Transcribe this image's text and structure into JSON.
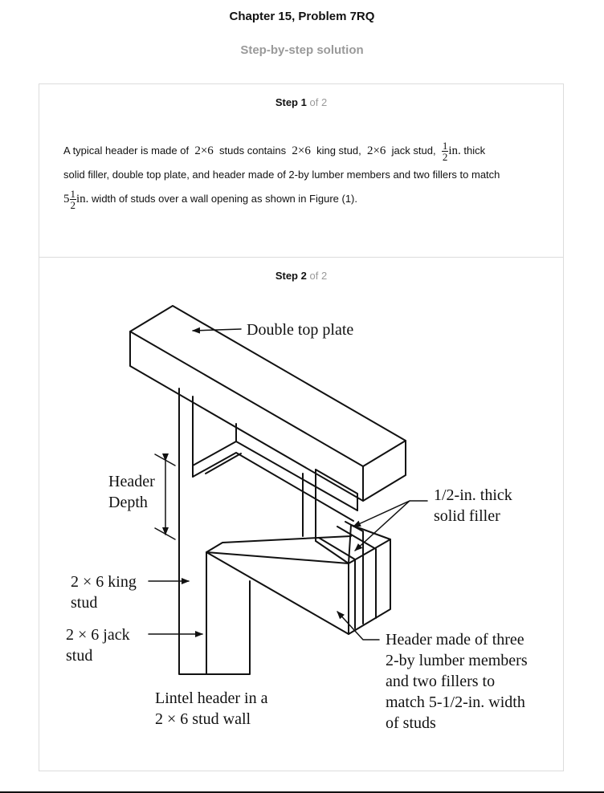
{
  "header": {
    "chapter_title": "Chapter 15, Problem 7RQ",
    "subtitle": "Step-by-step solution"
  },
  "step1": {
    "word": "Step",
    "num": "1",
    "of": "of 2",
    "t1": "A typical header is made of",
    "m1": "2×6",
    "t2": "studs contains",
    "m2": "2×6",
    "t3": "king stud,",
    "m3": "2×6",
    "t4": "jack stud,",
    "f1_num": "1",
    "f1_den": "2",
    "f1_unit": "in.",
    "t5": "thick",
    "line2": "solid filler, double top plate, and header made of 2-by lumber members and two fillers to match",
    "f2_whole": "5",
    "f2_num": "1",
    "f2_den": "2",
    "f2_unit": "in.",
    "t6": "width of studs over a wall opening as shown in Figure (1)."
  },
  "step2": {
    "word": "Step",
    "num": "2",
    "of": "of 2"
  },
  "figure": {
    "double_top_plate": "Double top plate",
    "header_depth_1": "Header",
    "header_depth_2": "Depth",
    "filler_1": "1/2-in. thick",
    "filler_2": "solid filler",
    "king_1": "2 × 6 king",
    "king_2": "stud",
    "jack_1": "2 × 6 jack",
    "jack_2": "stud",
    "header_1": "Header made of three",
    "header_2": "2-by lumber members",
    "header_3": "and two fillers to",
    "header_4": "match 5-1/2-in. width",
    "header_5": "of studs",
    "lintel_1": "Lintel header in a",
    "lintel_2": "2 × 6 stud wall"
  }
}
